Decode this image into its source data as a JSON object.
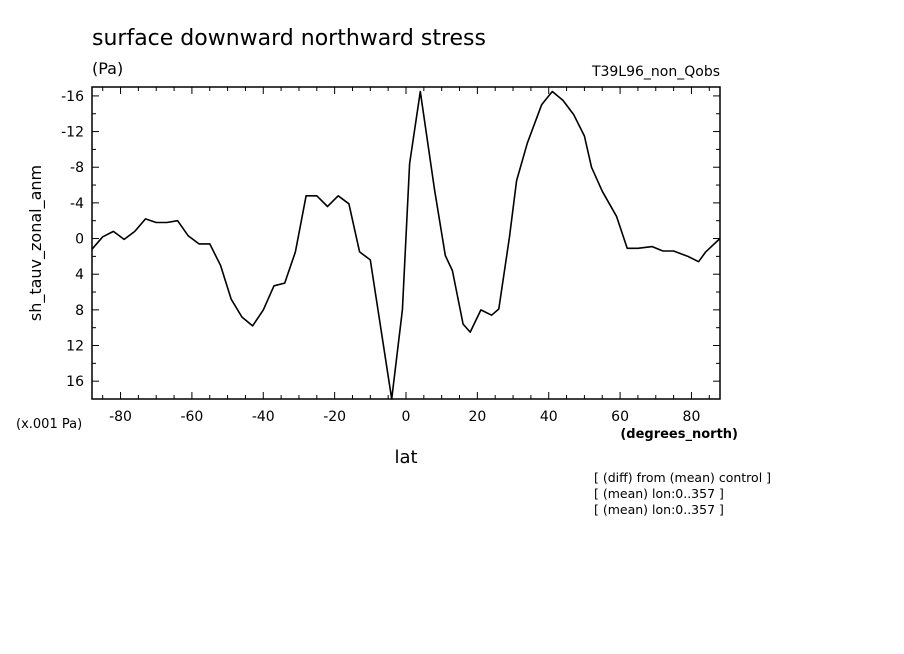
{
  "chart_data": {
    "type": "line",
    "title": "surface downward northward stress",
    "units": "(Pa)",
    "dataset": "T39L96_non_Qobs",
    "ylabel": "sh_tauv_zonal_anm",
    "yscale_label": "(x.001 Pa)",
    "xlabel": "lat",
    "xunits": "(degrees_north)",
    "notes": [
      "[ (diff) from (mean) control ]",
      "[ (mean) lon:0..357 ]",
      "[ (mean) lon:0..357 ]"
    ],
    "xlim": [
      -88,
      88
    ],
    "ylim": [
      18,
      -17
    ],
    "y_inverted": true,
    "xticks": [
      -80,
      -60,
      -40,
      -20,
      0,
      20,
      40,
      60,
      80
    ],
    "yticks": [
      -16,
      -12,
      -8,
      -4,
      0,
      4,
      8,
      12,
      16
    ],
    "grid": false,
    "series": [
      {
        "x": [
          -88,
          -85,
          -82,
          -79,
          -76,
          -73,
          -70,
          -67,
          -64,
          -61,
          -58,
          -55,
          -52,
          -49,
          -46,
          -43,
          -40,
          -37,
          -34,
          -31,
          -28,
          -25,
          -22,
          -19,
          -16,
          -13,
          -10,
          -7,
          -4,
          -1,
          1,
          4,
          8,
          11,
          13,
          16,
          18,
          21,
          24,
          26,
          29,
          31,
          34,
          38,
          41,
          44,
          47,
          50,
          52,
          55,
          59,
          62,
          65,
          69,
          72,
          75,
          79,
          82,
          84,
          88
        ],
        "y": [
          1.2,
          -0.2,
          -0.8,
          0.1,
          -0.8,
          -2.2,
          -1.8,
          -1.8,
          -2.0,
          -0.3,
          0.6,
          0.6,
          3.0,
          6.8,
          8.8,
          9.8,
          8.0,
          5.3,
          5.0,
          1.5,
          -4.8,
          -4.8,
          -3.6,
          -4.8,
          -3.9,
          1.5,
          2.4,
          10.2,
          18.0,
          8.0,
          -8.4,
          -16.5,
          -5.5,
          1.9,
          3.6,
          9.6,
          10.5,
          8.0,
          8.6,
          7.9,
          -0.2,
          -6.5,
          -10.7,
          -15.0,
          -16.5,
          -15.5,
          -13.9,
          -11.5,
          -8.0,
          -5.3,
          -2.5,
          1.1,
          1.1,
          0.9,
          1.4,
          1.4,
          2.0,
          2.6,
          1.5,
          0.0
        ]
      }
    ]
  }
}
